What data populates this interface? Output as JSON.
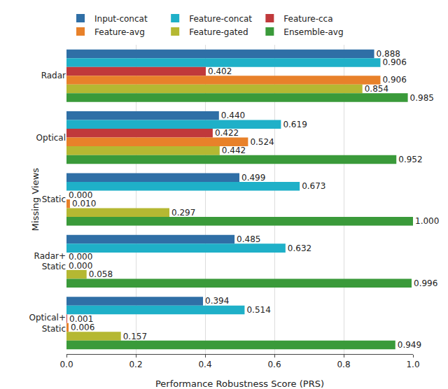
{
  "chart_data": {
    "type": "bar",
    "orientation": "horizontal",
    "x_label": "Performance Robustness Score (PRS)",
    "y_label": "Missing Views",
    "categories": [
      "Radar",
      "Optical",
      "Static",
      "Radar+\nStatic",
      "Optical+\nStatic"
    ],
    "series": [
      {
        "name": "Input-concat",
        "color": "#2f6fa6",
        "values": [
          0.888,
          0.44,
          0.499,
          0.485,
          0.394
        ],
        "value_labels": [
          "0.888",
          "0.440",
          "0.499",
          "0.485",
          "0.394"
        ]
      },
      {
        "name": "Feature-concat",
        "color": "#1fb0c8",
        "values": [
          0.906,
          0.619,
          0.673,
          0.632,
          0.514
        ],
        "value_labels": [
          "0.906",
          "0.619",
          "0.673",
          "0.632",
          "0.514"
        ]
      },
      {
        "name": "Feature-cca",
        "color": "#c0393b",
        "values": [
          0.402,
          0.422,
          0.0,
          0.0,
          0.001
        ],
        "value_labels": [
          "0.402",
          "0.422",
          "0.000",
          "0.000",
          "0.001"
        ]
      },
      {
        "name": "Feature-avg",
        "color": "#e8812a",
        "values": [
          0.906,
          0.524,
          0.01,
          0.0,
          0.006
        ],
        "value_labels": [
          "0.906",
          "0.524",
          "0.010",
          "0.000",
          "0.006"
        ]
      },
      {
        "name": "Feature-gated",
        "color": "#b5b832",
        "values": [
          0.854,
          0.442,
          0.297,
          0.058,
          0.157
        ],
        "value_labels": [
          "0.854",
          "0.442",
          "0.297",
          "0.058",
          "0.157"
        ]
      },
      {
        "name": "Ensemble-avg",
        "color": "#3a9a3a",
        "values": [
          0.985,
          0.952,
          1.0,
          0.996,
          0.949
        ],
        "value_labels": [
          "0.985",
          "0.952",
          "1.000",
          "0.996",
          "0.949"
        ]
      }
    ],
    "xlim": [
      0,
      1.0
    ],
    "xticks": [
      {
        "value": 0,
        "label": "0.0"
      },
      0.2,
      0.4,
      0.6,
      0.8,
      {
        "value": 1.0,
        "label": "1.0"
      }
    ],
    "grid": true,
    "legend": "top",
    "data_labels": true
  }
}
